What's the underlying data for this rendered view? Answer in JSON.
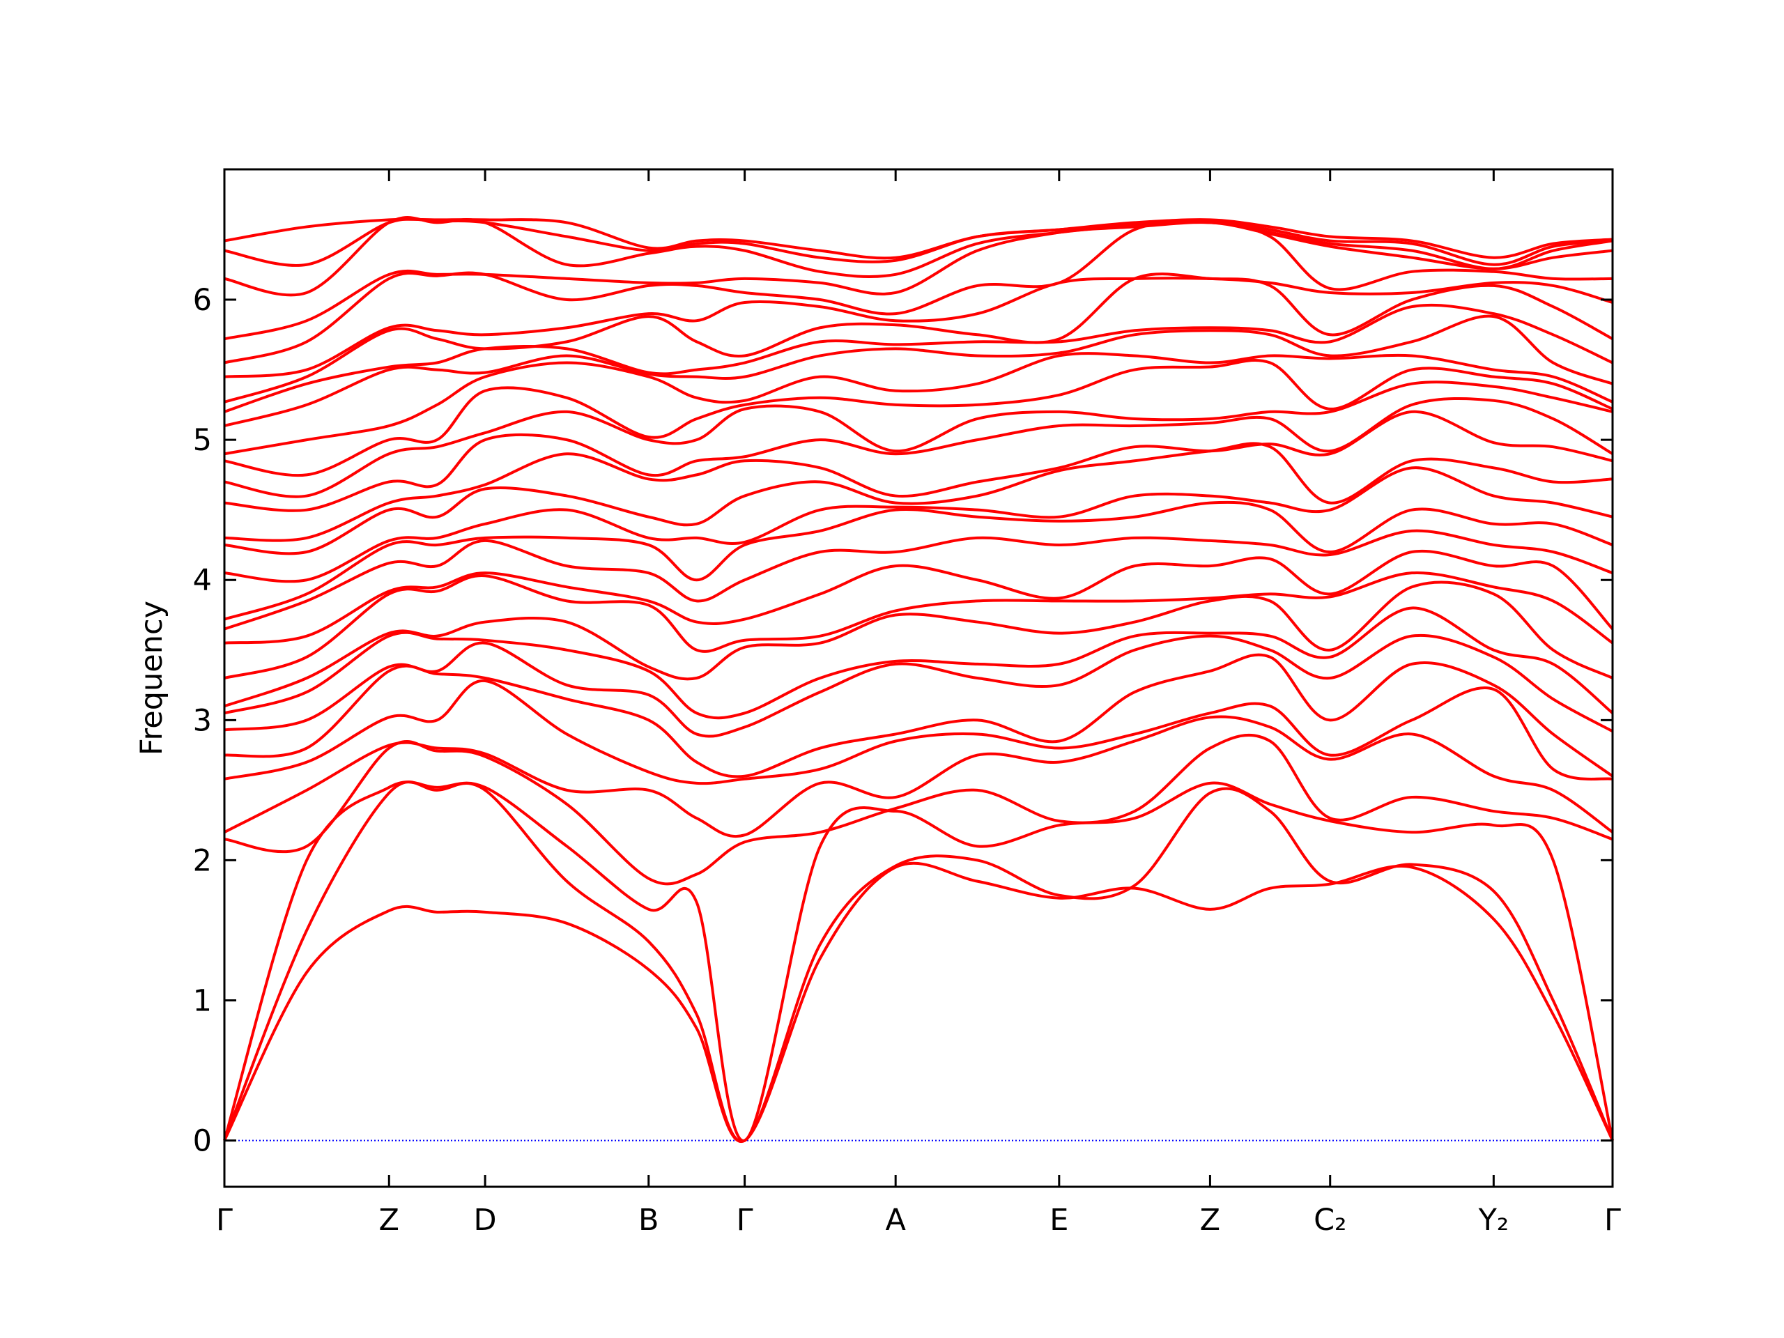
{
  "chart_data": {
    "type": "line",
    "y_label": "Frequency",
    "color": "#ff0000",
    "zero_line": true,
    "zero_line_color": "#0000ff",
    "x": [
      0,
      0.072,
      0.144,
      0.186,
      0.228,
      0.2995,
      0.371,
      0.413,
      0.455,
      0.521,
      0.587,
      0.6585,
      0.73,
      0.796,
      0.862,
      0.9145,
      0.967,
      1.0385,
      1.11,
      1.162,
      1.214
    ],
    "xlim": [
      0,
      1.214
    ],
    "xticks": [
      {
        "value": 0,
        "label": "Γ"
      },
      {
        "value": 0.144,
        "label": "Z"
      },
      {
        "value": 0.228,
        "label": "D"
      },
      {
        "value": 0.371,
        "label": "B"
      },
      {
        "value": 0.455,
        "label": "Γ"
      },
      {
        "value": 0.587,
        "label": "A"
      },
      {
        "value": 0.73,
        "label": "E"
      },
      {
        "value": 0.862,
        "label": "Z"
      },
      {
        "value": 0.967,
        "label": "C₂"
      },
      {
        "value": 1.11,
        "label": "Y₂"
      },
      {
        "value": 1.214,
        "label": "Γ"
      }
    ],
    "ylim": [
      -0.33,
      6.93
    ],
    "yticks": [
      0,
      1,
      2,
      3,
      4,
      5,
      6
    ],
    "series": [
      {
        "values": [
          0,
          1.2,
          1.64,
          1.63,
          1.63,
          1.55,
          1.22,
          0.8,
          0,
          1.3,
          1.95,
          1.85,
          1.73,
          1.8,
          1.65,
          1.8,
          1.83,
          1.95,
          1.58,
          0.9,
          0
        ]
      },
      {
        "values": [
          0,
          1.5,
          2.48,
          2.5,
          2.5,
          1.85,
          1.42,
          0.9,
          0,
          1.4,
          1.96,
          2.0,
          1.75,
          1.82,
          2.48,
          2.35,
          1.85,
          1.97,
          1.78,
          1.0,
          0
        ]
      },
      {
        "values": [
          0,
          2.0,
          2.52,
          2.52,
          2.52,
          2.1,
          1.65,
          1.7,
          0,
          2.1,
          2.35,
          2.1,
          2.25,
          2.3,
          2.55,
          2.4,
          2.28,
          2.2,
          2.25,
          2.0,
          0
        ]
      },
      {
        "values": [
          2.15,
          2.1,
          2.8,
          2.78,
          2.74,
          2.4,
          1.87,
          1.9,
          2.13,
          2.2,
          2.37,
          2.5,
          2.28,
          2.35,
          2.8,
          2.85,
          2.3,
          2.45,
          2.35,
          2.3,
          2.15
        ]
      },
      {
        "values": [
          2.2,
          2.5,
          2.82,
          2.8,
          2.76,
          2.5,
          2.5,
          2.3,
          2.18,
          2.55,
          2.45,
          2.75,
          2.7,
          2.85,
          3.02,
          2.95,
          2.72,
          2.9,
          2.6,
          2.5,
          2.2
        ]
      },
      {
        "values": [
          2.58,
          2.7,
          3.02,
          3.0,
          3.28,
          2.9,
          2.63,
          2.55,
          2.58,
          2.65,
          2.85,
          2.9,
          2.8,
          2.9,
          3.05,
          3.1,
          2.75,
          3.0,
          3.22,
          2.65,
          2.58
        ]
      },
      {
        "values": [
          2.75,
          2.8,
          3.35,
          3.33,
          3.3,
          3.15,
          3.0,
          2.7,
          2.6,
          2.8,
          2.9,
          3.0,
          2.85,
          3.2,
          3.35,
          3.45,
          3.0,
          3.4,
          3.25,
          2.9,
          2.6
        ]
      },
      {
        "values": [
          2.93,
          3.0,
          3.38,
          3.35,
          3.55,
          3.25,
          3.18,
          2.9,
          2.95,
          3.2,
          3.4,
          3.3,
          3.25,
          3.5,
          3.6,
          3.5,
          3.3,
          3.6,
          3.45,
          3.15,
          2.92
        ]
      },
      {
        "values": [
          3.05,
          3.2,
          3.6,
          3.58,
          3.57,
          3.5,
          3.35,
          3.05,
          3.05,
          3.3,
          3.42,
          3.4,
          3.4,
          3.6,
          3.62,
          3.6,
          3.45,
          3.8,
          3.5,
          3.4,
          3.05
        ]
      },
      {
        "values": [
          3.1,
          3.3,
          3.62,
          3.6,
          3.7,
          3.7,
          3.38,
          3.3,
          3.52,
          3.55,
          3.75,
          3.7,
          3.62,
          3.7,
          3.85,
          3.85,
          3.5,
          3.95,
          3.9,
          3.5,
          3.3
        ]
      },
      {
        "values": [
          3.3,
          3.45,
          3.9,
          3.92,
          4.03,
          3.85,
          3.82,
          3.5,
          3.57,
          3.6,
          3.78,
          3.85,
          3.85,
          3.85,
          3.87,
          3.9,
          3.88,
          4.05,
          3.95,
          3.85,
          3.55
        ]
      },
      {
        "values": [
          3.55,
          3.6,
          3.92,
          3.95,
          4.05,
          3.95,
          3.85,
          3.7,
          3.72,
          3.9,
          4.1,
          4.0,
          3.87,
          4.1,
          4.1,
          4.15,
          3.9,
          4.2,
          4.1,
          4.1,
          3.65
        ]
      },
      {
        "values": [
          3.65,
          3.85,
          4.12,
          4.1,
          4.28,
          4.1,
          4.05,
          3.85,
          4.0,
          4.2,
          4.2,
          4.3,
          4.25,
          4.3,
          4.28,
          4.25,
          4.18,
          4.35,
          4.25,
          4.2,
          4.05
        ]
      },
      {
        "values": [
          3.72,
          3.9,
          4.25,
          4.25,
          4.3,
          4.3,
          4.25,
          4.0,
          4.25,
          4.35,
          4.5,
          4.45,
          4.42,
          4.45,
          4.55,
          4.5,
          4.2,
          4.5,
          4.4,
          4.4,
          4.25
        ]
      },
      {
        "values": [
          4.05,
          4.0,
          4.28,
          4.3,
          4.4,
          4.5,
          4.3,
          4.3,
          4.27,
          4.5,
          4.52,
          4.5,
          4.45,
          4.6,
          4.6,
          4.55,
          4.5,
          4.8,
          4.6,
          4.55,
          4.45
        ]
      },
      {
        "values": [
          4.25,
          4.2,
          4.5,
          4.45,
          4.65,
          4.6,
          4.45,
          4.4,
          4.6,
          4.7,
          4.55,
          4.6,
          4.78,
          4.85,
          4.92,
          4.95,
          4.55,
          4.85,
          4.8,
          4.7,
          4.72
        ]
      },
      {
        "values": [
          4.3,
          4.3,
          4.55,
          4.6,
          4.68,
          4.9,
          4.72,
          4.75,
          4.85,
          4.8,
          4.6,
          4.7,
          4.8,
          4.95,
          4.92,
          4.97,
          4.9,
          5.2,
          4.98,
          4.95,
          4.85
        ]
      },
      {
        "values": [
          4.55,
          4.5,
          4.7,
          4.68,
          5.0,
          5.0,
          4.75,
          4.85,
          4.88,
          5.0,
          4.9,
          5.0,
          5.1,
          5.1,
          5.12,
          5.15,
          4.92,
          5.25,
          5.28,
          5.15,
          4.9
        ]
      },
      {
        "values": [
          4.7,
          4.6,
          4.9,
          4.95,
          5.05,
          5.2,
          5.0,
          5.0,
          5.22,
          5.2,
          4.92,
          5.15,
          5.2,
          5.15,
          5.15,
          5.2,
          5.2,
          5.4,
          5.38,
          5.3,
          5.2
        ]
      },
      {
        "values": [
          4.85,
          4.75,
          5.0,
          5.0,
          5.35,
          5.3,
          5.02,
          5.15,
          5.25,
          5.3,
          5.25,
          5.25,
          5.32,
          5.5,
          5.52,
          5.55,
          5.22,
          5.5,
          5.45,
          5.4,
          5.22
        ]
      },
      {
        "values": [
          4.9,
          5.0,
          5.1,
          5.25,
          5.45,
          5.55,
          5.45,
          5.3,
          5.28,
          5.45,
          5.35,
          5.4,
          5.6,
          5.6,
          5.55,
          5.6,
          5.58,
          5.6,
          5.5,
          5.45,
          5.27
        ]
      },
      {
        "values": [
          5.1,
          5.25,
          5.5,
          5.5,
          5.48,
          5.6,
          5.47,
          5.45,
          5.45,
          5.6,
          5.65,
          5.6,
          5.62,
          5.75,
          5.78,
          5.75,
          5.6,
          5.7,
          5.88,
          5.55,
          5.4
        ]
      },
      {
        "values": [
          5.2,
          5.4,
          5.52,
          5.55,
          5.65,
          5.65,
          5.48,
          5.5,
          5.55,
          5.7,
          5.68,
          5.7,
          5.7,
          5.78,
          5.8,
          5.78,
          5.7,
          5.95,
          5.9,
          5.75,
          5.55
        ]
      },
      {
        "values": [
          5.27,
          5.45,
          5.78,
          5.72,
          5.65,
          5.7,
          5.88,
          5.7,
          5.6,
          5.8,
          5.82,
          5.75,
          5.72,
          6.15,
          6.15,
          6.1,
          5.75,
          6.0,
          6.1,
          5.95,
          5.72
        ]
      },
      {
        "values": [
          5.45,
          5.5,
          5.8,
          5.78,
          5.75,
          5.8,
          5.9,
          5.85,
          5.98,
          5.95,
          5.85,
          5.9,
          6.12,
          6.15,
          6.15,
          6.12,
          6.05,
          6.05,
          6.12,
          6.1,
          5.98
        ]
      },
      {
        "values": [
          5.55,
          5.7,
          6.15,
          6.17,
          6.18,
          6.0,
          6.1,
          6.1,
          6.05,
          6.0,
          5.9,
          6.1,
          6.12,
          6.5,
          6.55,
          6.45,
          6.08,
          6.2,
          6.2,
          6.15,
          6.15
        ]
      },
      {
        "values": [
          5.72,
          5.85,
          6.18,
          6.18,
          6.18,
          6.15,
          6.12,
          6.12,
          6.15,
          6.12,
          6.05,
          6.35,
          6.48,
          6.52,
          6.55,
          6.47,
          6.38,
          6.3,
          6.22,
          6.3,
          6.35
        ]
      },
      {
        "values": [
          6.15,
          6.05,
          6.55,
          6.55,
          6.55,
          6.25,
          6.33,
          6.38,
          6.35,
          6.2,
          6.18,
          6.4,
          6.48,
          6.53,
          6.56,
          6.48,
          6.4,
          6.35,
          6.22,
          6.35,
          6.42
        ]
      },
      {
        "values": [
          6.35,
          6.25,
          6.55,
          6.56,
          6.55,
          6.45,
          6.35,
          6.4,
          6.4,
          6.3,
          6.28,
          6.45,
          6.5,
          6.54,
          6.56,
          6.5,
          6.42,
          6.4,
          6.25,
          6.38,
          6.42
        ]
      },
      {
        "values": [
          6.42,
          6.52,
          6.57,
          6.57,
          6.57,
          6.55,
          6.37,
          6.42,
          6.42,
          6.35,
          6.3,
          6.45,
          6.5,
          6.55,
          6.57,
          6.52,
          6.45,
          6.42,
          6.3,
          6.4,
          6.43
        ]
      }
    ]
  }
}
